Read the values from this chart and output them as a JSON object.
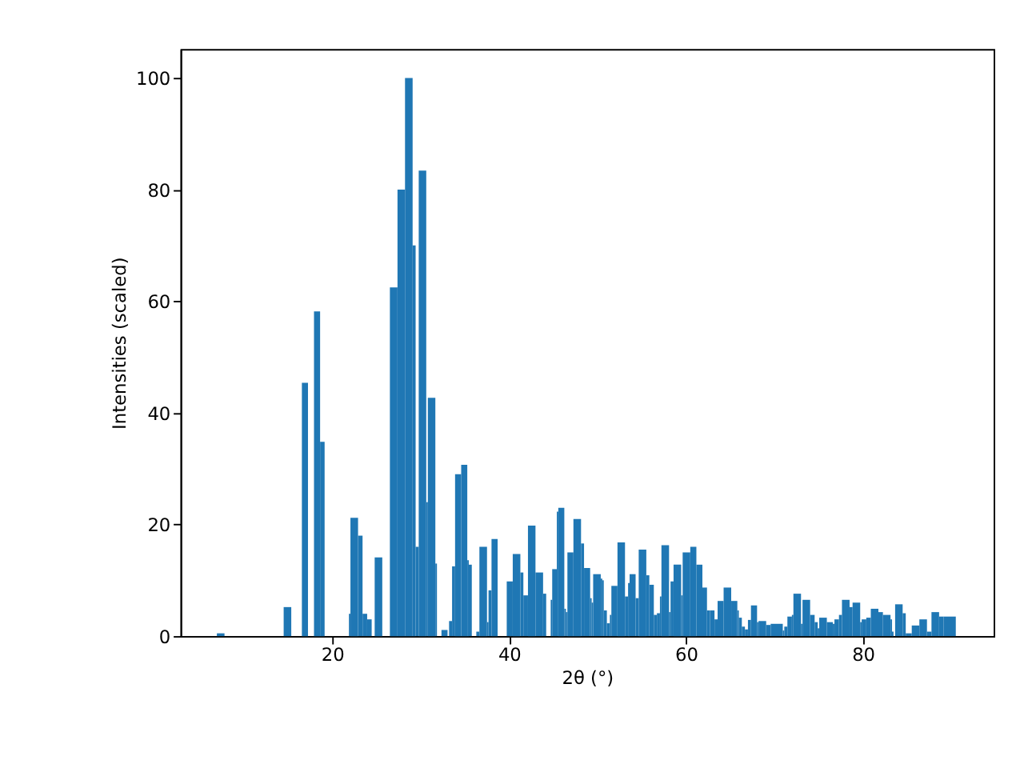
{
  "chart_data": {
    "type": "histogram",
    "xlabel": "2θ (°)",
    "ylabel": "Intensities (scaled)",
    "bins": [
      6.96,
      7.82,
      14.51,
      15.37,
      16.57,
      17.26,
      17.94,
      18.63,
      19.14,
      21.89,
      22.06,
      22.92,
      23.43,
      23.95,
      24.46,
      24.8,
      25.66,
      26.52,
      27.38,
      28.23,
      29.09,
      29.43,
      29.78,
      30.63,
      30.81,
      31.66,
      31.84,
      32.35,
      33.04,
      33.21,
      33.55,
      33.89,
      34.58,
      35.27,
      35.44,
      35.78,
      36.29,
      36.64,
      37.5,
      37.67,
      38.01,
      38.7,
      39.73,
      40.41,
      41.27,
      41.61,
      42.13,
      42.98,
      43.84,
      44.19,
      44.7,
      44.87,
      45.39,
      45.56,
      46.24,
      46.42,
      46.59,
      47.27,
      48.13,
      48.47,
      49.16,
      49.33,
      49.5,
      50.36,
      50.53,
      50.7,
      51.05,
      51.39,
      51.56,
      52.25,
      53.1,
      53.45,
      53.62,
      54.3,
      54.65,
      55.51,
      55.85,
      56.36,
      56.71,
      57.05,
      57.22,
      58.08,
      58.25,
      58.59,
      59.45,
      59.62,
      60.48,
      61.17,
      61.85,
      62.37,
      62.71,
      63.22,
      63.57,
      64.25,
      65.11,
      65.8,
      65.97,
      66.31,
      66.66,
      67.0,
      67.34,
      68.03,
      68.2,
      69.06,
      69.57,
      70.94,
      71.11,
      71.46,
      71.97,
      72.14,
      73.0,
      73.17,
      74.03,
      74.54,
      74.89,
      75.06,
      75.92,
      76.6,
      76.78,
      77.29,
      77.63,
      78.49,
      78.83,
      79.69,
      79.86,
      80.38,
      80.89,
      81.75,
      82.26,
      83.12,
      83.29,
      83.46,
      83.64,
      84.49,
      84.84,
      85.52,
      86.38,
      87.24,
      87.75,
      88.61,
      89.13,
      90.5
    ],
    "values": [
      0.5,
      0,
      5.2,
      0,
      45.4,
      0,
      58.2,
      34.8,
      0,
      4,
      21.2,
      18,
      4,
      3,
      0,
      14.1,
      0,
      62.5,
      80,
      100,
      70,
      16,
      83.4,
      24,
      42.7,
      13,
      0,
      1.1,
      0,
      2.7,
      12.5,
      29,
      30.7,
      13.6,
      12.8,
      0,
      0.8,
      16,
      2.5,
      8.2,
      17.4,
      0,
      9.8,
      14.7,
      11.4,
      7.3,
      19.8,
      11.4,
      7.6,
      0,
      6.5,
      12,
      22.3,
      23,
      4.9,
      4.3,
      15,
      21,
      16.6,
      12.2,
      6.8,
      6,
      11.1,
      10.3,
      10,
      4.6,
      2.3,
      3.8,
      9,
      16.8,
      7.1,
      9.5,
      11.1,
      6.8,
      15.5,
      10.9,
      9.2,
      3.8,
      4.1,
      7.1,
      16.3,
      4.3,
      9.8,
      12.8,
      7.3,
      15,
      16,
      12.8,
      8.7,
      4.6,
      4.6,
      3,
      6.3,
      8.7,
      6.3,
      4.6,
      3.3,
      1.7,
      1.2,
      2.9,
      5.5,
      2.5,
      2.7,
      2,
      2.2,
      1,
      1.7,
      3.5,
      3.8,
      7.6,
      2.2,
      6.5,
      3.8,
      2.5,
      1.4,
      3.3,
      2.5,
      2.2,
      3,
      3.8,
      6.5,
      5.2,
      6,
      2.5,
      3,
      3.3,
      4.9,
      4.3,
      3.8,
      3,
      0.8,
      0,
      5.7,
      4.1,
      0.5,
      1.9,
      3,
      0.8,
      4.3,
      3.5,
      3.5
    ],
    "color": "#1f77b4",
    "xlim": [
      2.85,
      94.78
    ],
    "ylim": [
      0,
      105.2
    ],
    "xticks": [
      20,
      40,
      60,
      80
    ],
    "yticks": [
      0,
      20,
      40,
      60,
      80,
      100
    ],
    "grid": false
  }
}
